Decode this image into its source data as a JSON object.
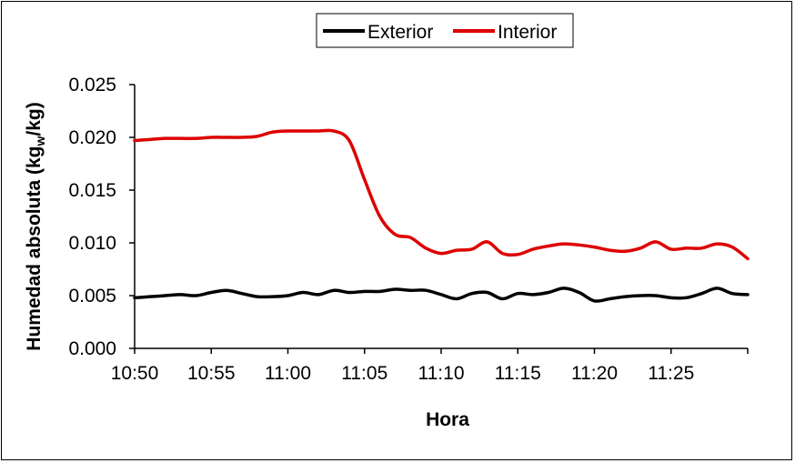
{
  "chart_data": {
    "type": "line",
    "xlabel": "Hora",
    "ylabel_main": "Humedad absoluta (kg",
    "ylabel_sub": "w",
    "ylabel_end": "/kg)",
    "ylim": [
      0,
      0.025
    ],
    "yticks": [
      "0.000",
      "0.005",
      "0.010",
      "0.015",
      "0.020",
      "0.025"
    ],
    "ytick_values": [
      0,
      0.005,
      0.01,
      0.015,
      0.02,
      0.025
    ],
    "xlim": [
      0,
      40
    ],
    "xticks": [
      "10:50",
      "10:55",
      "11:00",
      "11:05",
      "11:10",
      "11:15",
      "11:20",
      "11:25"
    ],
    "xtick_values": [
      0,
      5,
      10,
      15,
      20,
      25,
      30,
      35
    ],
    "x_unit": "minutes after 10:50",
    "legend_position": "top-center",
    "grid": false,
    "series": [
      {
        "name": "Exterior",
        "color": "#000000",
        "points": [
          [
            0,
            0.0048
          ],
          [
            1,
            0.0049
          ],
          [
            2,
            0.005
          ],
          [
            3,
            0.0051
          ],
          [
            4,
            0.005
          ],
          [
            5,
            0.0053
          ],
          [
            6,
            0.0055
          ],
          [
            7,
            0.0052
          ],
          [
            8,
            0.0049
          ],
          [
            9,
            0.0049
          ],
          [
            10,
            0.005
          ],
          [
            11,
            0.0053
          ],
          [
            12,
            0.0051
          ],
          [
            13,
            0.0055
          ],
          [
            14,
            0.0053
          ],
          [
            15,
            0.0054
          ],
          [
            16,
            0.0054
          ],
          [
            17,
            0.0056
          ],
          [
            18,
            0.0055
          ],
          [
            19,
            0.0055
          ],
          [
            20,
            0.0051
          ],
          [
            21,
            0.0047
          ],
          [
            22,
            0.0052
          ],
          [
            23,
            0.0053
          ],
          [
            24,
            0.0047
          ],
          [
            25,
            0.0052
          ],
          [
            26,
            0.0051
          ],
          [
            27,
            0.0053
          ],
          [
            28,
            0.0057
          ],
          [
            29,
            0.0053
          ],
          [
            30,
            0.0045
          ],
          [
            31,
            0.0047
          ],
          [
            32,
            0.0049
          ],
          [
            33,
            0.005
          ],
          [
            34,
            0.005
          ],
          [
            35,
            0.0048
          ],
          [
            36,
            0.0048
          ],
          [
            37,
            0.0052
          ],
          [
            38,
            0.0057
          ],
          [
            39,
            0.0052
          ],
          [
            40,
            0.0051
          ]
        ]
      },
      {
        "name": "Interior",
        "color": "#dd0000",
        "points": [
          [
            0,
            0.0197
          ],
          [
            1,
            0.0198
          ],
          [
            2,
            0.0199
          ],
          [
            3,
            0.0199
          ],
          [
            4,
            0.0199
          ],
          [
            5,
            0.02
          ],
          [
            6,
            0.02
          ],
          [
            7,
            0.02
          ],
          [
            8,
            0.0201
          ],
          [
            9,
            0.0205
          ],
          [
            10,
            0.0206
          ],
          [
            11,
            0.0206
          ],
          [
            12,
            0.0206
          ],
          [
            13,
            0.0206
          ],
          [
            14,
            0.0197
          ],
          [
            15,
            0.016
          ],
          [
            16,
            0.0125
          ],
          [
            17,
            0.0108
          ],
          [
            18,
            0.0105
          ],
          [
            19,
            0.0095
          ],
          [
            20,
            0.009
          ],
          [
            21,
            0.0093
          ],
          [
            22,
            0.0094
          ],
          [
            23,
            0.0101
          ],
          [
            24,
            0.009
          ],
          [
            25,
            0.0089
          ],
          [
            26,
            0.0094
          ],
          [
            27,
            0.0097
          ],
          [
            28,
            0.0099
          ],
          [
            29,
            0.0098
          ],
          [
            30,
            0.0096
          ],
          [
            31,
            0.0093
          ],
          [
            32,
            0.0092
          ],
          [
            33,
            0.0095
          ],
          [
            34,
            0.0101
          ],
          [
            35,
            0.0094
          ],
          [
            36,
            0.0095
          ],
          [
            37,
            0.0095
          ],
          [
            38,
            0.0099
          ],
          [
            39,
            0.0096
          ],
          [
            40,
            0.0085
          ]
        ]
      }
    ]
  }
}
